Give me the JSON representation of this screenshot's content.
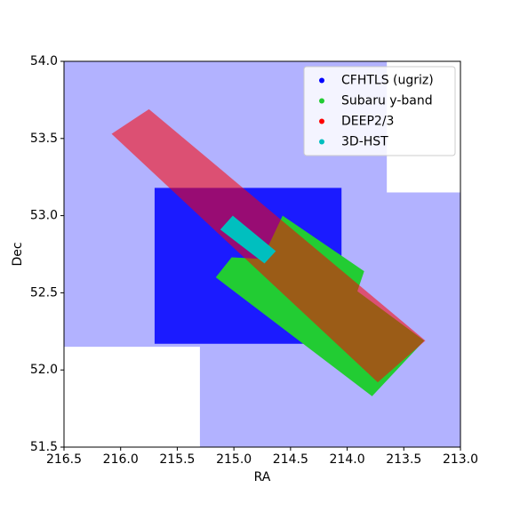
{
  "chart_data": {
    "type": "footprint",
    "xlabel": "RA",
    "ylabel": "Dec",
    "xlim": [
      216.5,
      213.0
    ],
    "ylim": [
      51.5,
      54.0
    ],
    "xticks": [
      216.5,
      {
        "value": 216,
        "label": "216.0"
      },
      215.5,
      {
        "value": 215,
        "label": "215.0"
      },
      214.5,
      {
        "value": 214,
        "label": "214.0"
      },
      213.5,
      {
        "value": 213,
        "label": "213.0"
      }
    ],
    "yticks": [
      51.5,
      {
        "value": 52,
        "label": "52.0"
      },
      52.5,
      {
        "value": 53,
        "label": "53.0"
      },
      53.5,
      {
        "value": 54,
        "label": "54.0"
      }
    ],
    "legend": "upper right",
    "series": [
      {
        "name": "CFHTLS (ugriz)",
        "color": "#0000ff",
        "regions": [
          {
            "opacity": 0.3,
            "x": [
              216.5,
              213.65,
              213.65,
              213.0,
              213.0,
              215.3,
              215.3,
              216.5
            ],
            "y": [
              54.0,
              54.0,
              53.15,
              53.15,
              51.5,
              51.5,
              52.15,
              52.15
            ]
          },
          {
            "opacity": 0.85,
            "x": [
              215.7,
              214.05,
              214.05,
              215.7
            ],
            "y": [
              53.18,
              53.18,
              52.17,
              52.17
            ]
          }
        ]
      },
      {
        "name": "Subaru y-band",
        "color": "#22cc33",
        "regions": [
          {
            "opacity": 1,
            "x": [
              214.57,
              213.85,
              213.91,
              213.32,
              213.78,
              215.16,
              215.02,
              214.75
            ],
            "y": [
              53.0,
              52.64,
              52.51,
              52.19,
              51.83,
              52.6,
              52.73,
              52.72
            ]
          }
        ]
      },
      {
        "name": "DEEP2/3",
        "color": "#ff0000",
        "regions": [
          {
            "opacity": 0.55,
            "x": [
              216.08,
              215.75,
              213.31,
              213.73
            ],
            "y": [
              53.53,
              53.69,
              52.19,
              51.92
            ]
          }
        ]
      },
      {
        "name": "3D-HST",
        "color": "#00bfbf",
        "regions": [
          {
            "opacity": 1,
            "x": [
              215.01,
              214.63,
              214.73,
              215.12
            ],
            "y": [
              53.0,
              52.77,
              52.69,
              52.91
            ]
          }
        ]
      }
    ]
  }
}
